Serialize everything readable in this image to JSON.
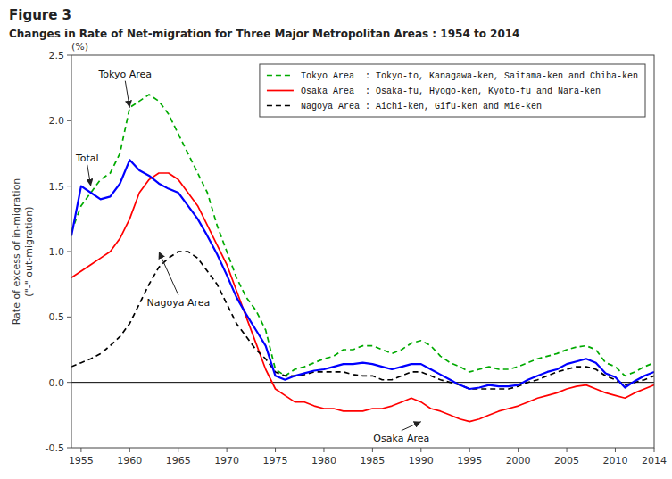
{
  "chart_data": {
    "type": "line",
    "title": "Figure 3",
    "subtitle": "Changes in Rate of Net-migration for Three Major Metropolitan Areas : 1954 to 2014",
    "ylabel": "Rate of excess of in-migration\n(\"-\" out-migration)",
    "y_unit": "(%)",
    "x": [
      1954,
      1955,
      1956,
      1957,
      1958,
      1959,
      1960,
      1961,
      1962,
      1963,
      1964,
      1965,
      1966,
      1967,
      1968,
      1969,
      1970,
      1971,
      1972,
      1973,
      1974,
      1975,
      1976,
      1977,
      1978,
      1979,
      1980,
      1981,
      1982,
      1983,
      1984,
      1985,
      1986,
      1987,
      1988,
      1989,
      1990,
      1991,
      1992,
      1993,
      1994,
      1995,
      1996,
      1997,
      1998,
      1999,
      2000,
      2001,
      2002,
      2003,
      2004,
      2005,
      2006,
      2007,
      2008,
      2009,
      2010,
      2011,
      2012,
      2013,
      2014
    ],
    "series": [
      {
        "name": "Tokyo Area  : Tokyo-to, Kanagawa-ken, Saitama-ken and Chiba-ken",
        "color": "#00aa00",
        "line_style": "dashed",
        "values": [
          1.15,
          1.35,
          1.45,
          1.55,
          1.6,
          1.75,
          2.1,
          2.15,
          2.2,
          2.15,
          2.05,
          1.9,
          1.75,
          1.6,
          1.45,
          1.2,
          1.0,
          0.8,
          0.65,
          0.55,
          0.4,
          0.1,
          0.05,
          0.1,
          0.12,
          0.15,
          0.18,
          0.2,
          0.25,
          0.25,
          0.28,
          0.28,
          0.25,
          0.22,
          0.25,
          0.3,
          0.32,
          0.28,
          0.2,
          0.15,
          0.12,
          0.08,
          0.1,
          0.12,
          0.1,
          0.1,
          0.12,
          0.15,
          0.18,
          0.2,
          0.22,
          0.25,
          0.27,
          0.28,
          0.25,
          0.15,
          0.12,
          0.05,
          0.08,
          0.12,
          0.15
        ]
      },
      {
        "name": "Osaka Area  : Osaka-fu, Hyogo-ken, Kyoto-fu and Nara-ken",
        "color": "#ff0000",
        "line_style": "solid",
        "values": [
          0.8,
          0.85,
          0.9,
          0.95,
          1.0,
          1.1,
          1.25,
          1.45,
          1.55,
          1.6,
          1.6,
          1.55,
          1.45,
          1.35,
          1.2,
          1.05,
          0.9,
          0.7,
          0.5,
          0.3,
          0.1,
          -0.05,
          -0.1,
          -0.15,
          -0.15,
          -0.18,
          -0.2,
          -0.2,
          -0.22,
          -0.22,
          -0.22,
          -0.2,
          -0.2,
          -0.18,
          -0.15,
          -0.12,
          -0.15,
          -0.2,
          -0.22,
          -0.25,
          -0.28,
          -0.3,
          -0.28,
          -0.25,
          -0.22,
          -0.2,
          -0.18,
          -0.15,
          -0.12,
          -0.1,
          -0.08,
          -0.05,
          -0.03,
          -0.02,
          -0.05,
          -0.08,
          -0.1,
          -0.12,
          -0.08,
          -0.05,
          -0.02
        ]
      },
      {
        "name": "Nagoya Area : Aichi-ken, Gifu-ken and Mie-ken",
        "color": "#000000",
        "line_style": "dashed",
        "values": [
          0.12,
          0.15,
          0.18,
          0.22,
          0.28,
          0.35,
          0.45,
          0.6,
          0.75,
          0.88,
          0.95,
          1.0,
          1.0,
          0.95,
          0.85,
          0.75,
          0.6,
          0.45,
          0.35,
          0.25,
          0.18,
          0.08,
          0.05,
          0.05,
          0.06,
          0.08,
          0.08,
          0.08,
          0.08,
          0.06,
          0.05,
          0.05,
          0.02,
          0.02,
          0.05,
          0.08,
          0.08,
          0.05,
          0.02,
          0.0,
          -0.02,
          -0.05,
          -0.05,
          -0.05,
          -0.05,
          -0.05,
          -0.03,
          0.0,
          0.02,
          0.05,
          0.08,
          0.1,
          0.12,
          0.12,
          0.1,
          0.05,
          0.02,
          -0.02,
          0.0,
          0.02,
          0.05
        ]
      },
      {
        "color": "#0000ff",
        "line_style": "solid",
        "values": [
          1.12,
          1.5,
          1.45,
          1.4,
          1.42,
          1.52,
          1.7,
          1.62,
          1.58,
          1.52,
          1.48,
          1.45,
          1.35,
          1.25,
          1.12,
          0.98,
          0.82,
          0.65,
          0.52,
          0.4,
          0.28,
          0.05,
          0.02,
          0.05,
          0.07,
          0.09,
          0.1,
          0.12,
          0.14,
          0.14,
          0.15,
          0.14,
          0.12,
          0.1,
          0.12,
          0.14,
          0.14,
          0.1,
          0.06,
          0.02,
          -0.02,
          -0.05,
          -0.04,
          -0.02,
          -0.03,
          -0.03,
          -0.02,
          0.02,
          0.05,
          0.08,
          0.1,
          0.14,
          0.16,
          0.18,
          0.15,
          0.07,
          0.04,
          -0.04,
          0.01,
          0.05,
          0.08
        ]
      }
    ],
    "annotations": [
      {
        "text": "Tokyo Area",
        "x": 1960,
        "y": 2.1
      },
      {
        "text": "Total",
        "x": 1956,
        "y": 1.5
      },
      {
        "text": "Nagoya Area",
        "x": 1963,
        "y": 1.0
      },
      {
        "text": "Osaka Area",
        "x": 1990,
        "y": -0.3
      }
    ],
    "xlim": [
      1954,
      2014
    ],
    "ylim": [
      -0.5,
      2.5
    ],
    "xticks": [
      1955,
      1960,
      1965,
      1970,
      1975,
      1980,
      1985,
      1990,
      1995,
      2000,
      2005,
      2010,
      2014
    ],
    "yticks": [
      -0.5,
      {
        "value": 0,
        "label": "0.0"
      },
      0.5,
      {
        "value": 1,
        "label": "1.0"
      },
      1.5,
      {
        "value": 2,
        "label": "2.0"
      },
      2.5
    ],
    "grid": false,
    "legend": "upper right"
  }
}
